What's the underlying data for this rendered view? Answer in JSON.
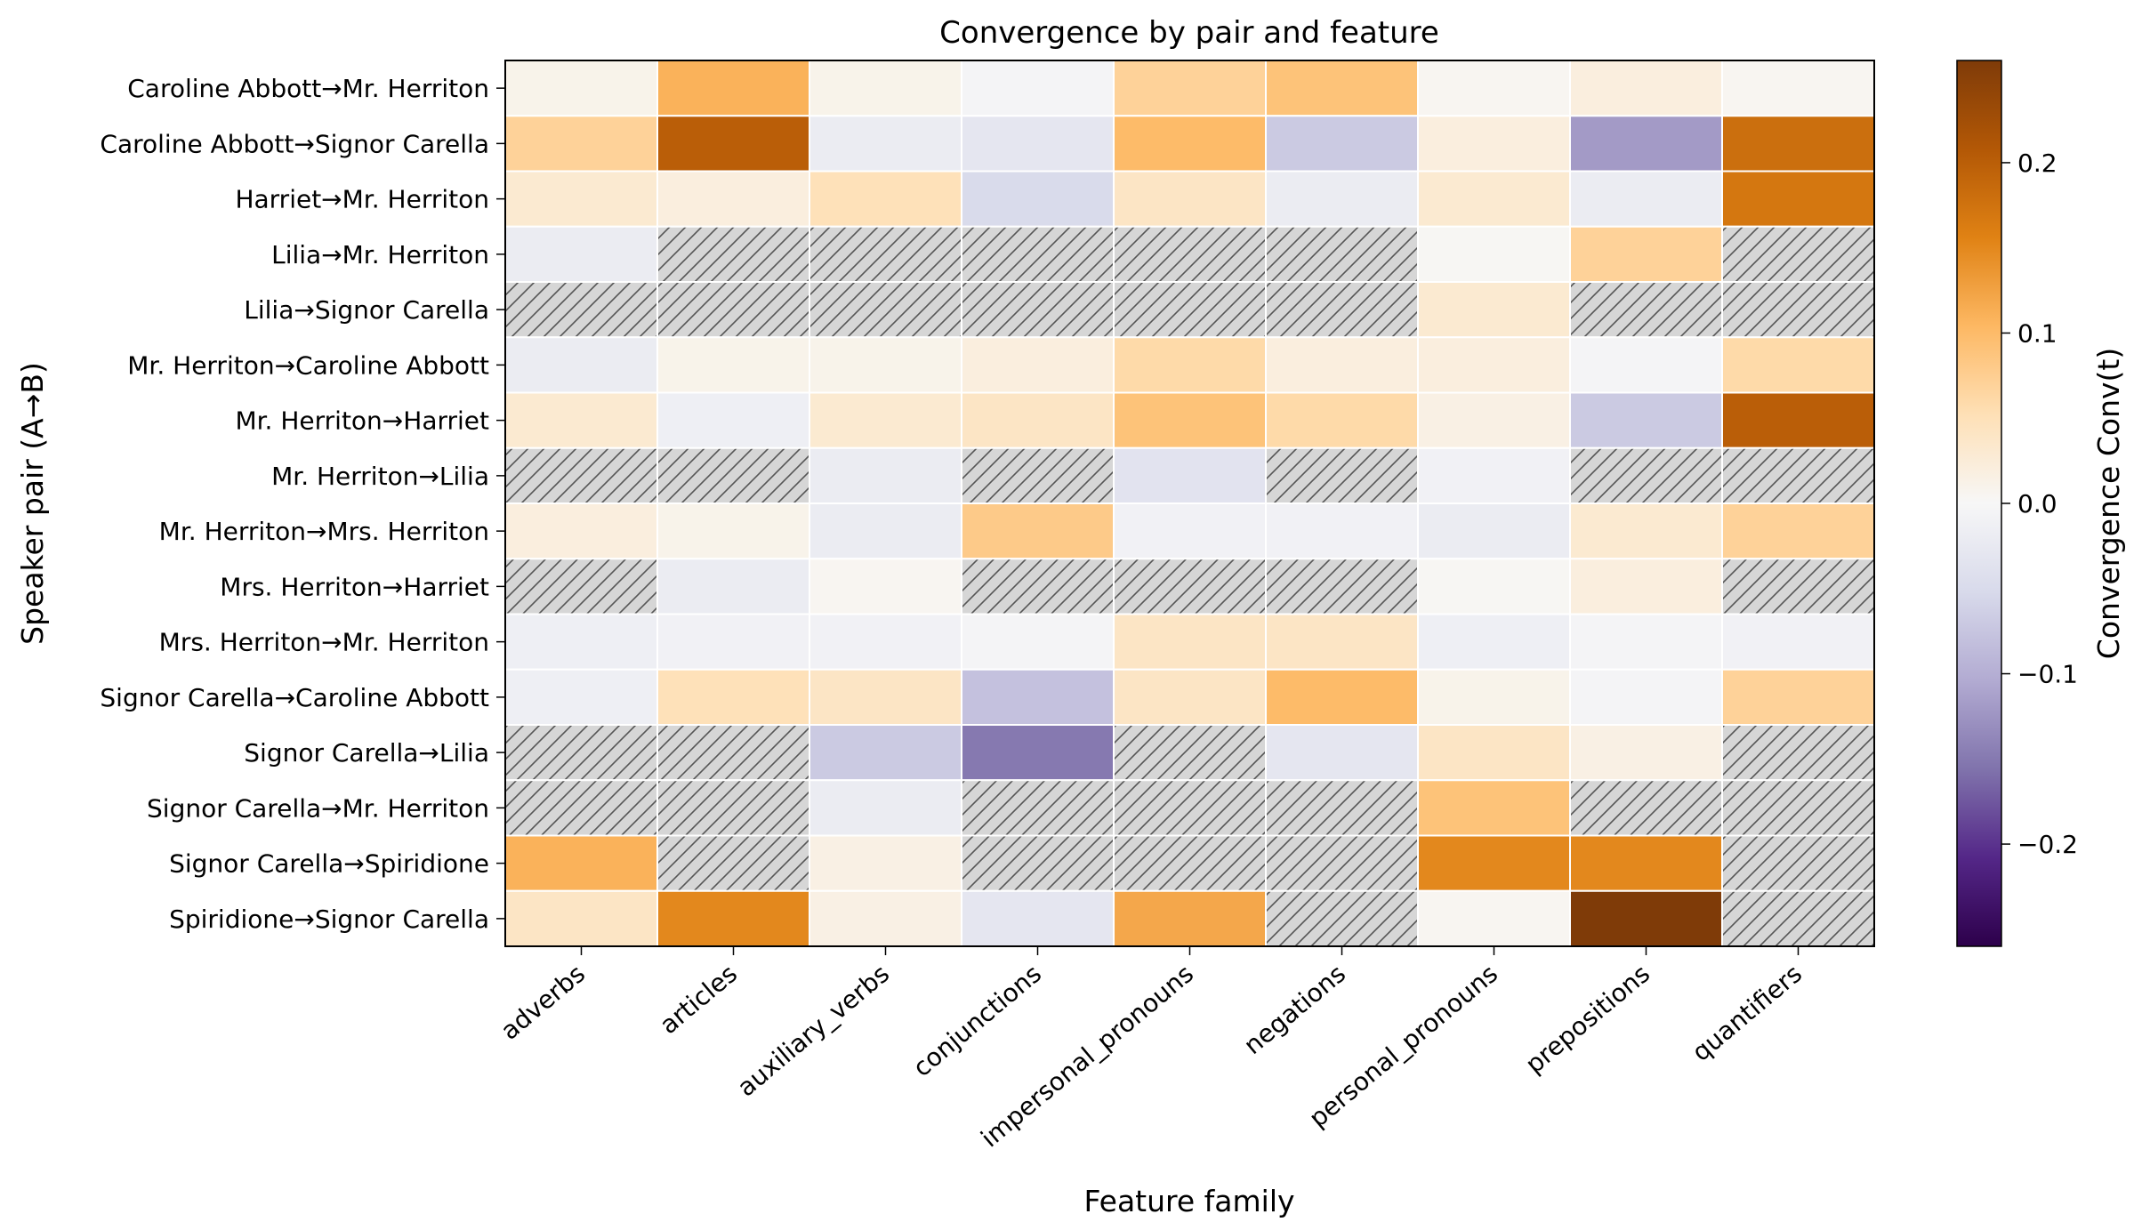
{
  "chart_data": {
    "type": "heatmap",
    "title": "Convergence by pair and feature",
    "xlabel": "Feature family",
    "ylabel": "Speaker pair (A→B)",
    "x_categories": [
      "adverbs",
      "articles",
      "auxiliary_verbs",
      "conjunctions",
      "impersonal_pronouns",
      "negations",
      "personal_pronouns",
      "prepositions",
      "quantifiers"
    ],
    "y_categories": [
      "Caroline Abbott→Mr. Herriton",
      "Caroline Abbott→Signor Carella",
      "Harriet→Mr. Herriton",
      "Lilia→Mr. Herriton",
      "Lilia→Signor Carella",
      "Mr. Herriton→Caroline Abbott",
      "Mr. Herriton→Harriet",
      "Mr. Herriton→Lilia",
      "Mr. Herriton→Mrs. Herriton",
      "Mrs. Herriton→Harriet",
      "Mrs. Herriton→Mr. Herriton",
      "Signor Carella→Caroline Abbott",
      "Signor Carella→Lilia",
      "Signor Carella→Mr. Herriton",
      "Signor Carella→Spiridione",
      "Spiridione→Signor Carella"
    ],
    "values": [
      [
        0.01,
        0.11,
        0.01,
        -0.005,
        0.07,
        0.09,
        0.005,
        0.02,
        0.005
      ],
      [
        0.07,
        0.2,
        -0.02,
        -0.03,
        0.1,
        -0.07,
        0.02,
        -0.12,
        0.18
      ],
      [
        0.03,
        0.02,
        0.05,
        -0.05,
        0.04,
        -0.02,
        0.03,
        -0.02,
        0.17
      ],
      [
        -0.02,
        null,
        null,
        null,
        null,
        null,
        0.003,
        0.07,
        null
      ],
      [
        null,
        null,
        null,
        null,
        null,
        null,
        0.03,
        null,
        null
      ],
      [
        -0.02,
        0.01,
        0.01,
        0.02,
        0.06,
        0.02,
        0.02,
        -0.005,
        0.06
      ],
      [
        0.03,
        -0.015,
        0.03,
        0.04,
        0.09,
        0.06,
        0.015,
        -0.07,
        0.2
      ],
      [
        null,
        null,
        -0.02,
        null,
        -0.035,
        null,
        -0.01,
        null,
        null
      ],
      [
        0.02,
        0.01,
        -0.02,
        0.08,
        -0.01,
        -0.01,
        -0.02,
        0.03,
        0.07
      ],
      [
        null,
        -0.02,
        0.005,
        null,
        null,
        null,
        0.003,
        0.02,
        null
      ],
      [
        -0.015,
        -0.01,
        -0.01,
        -0.005,
        0.04,
        0.04,
        -0.015,
        -0.005,
        -0.01
      ],
      [
        -0.015,
        0.05,
        0.04,
        -0.08,
        0.04,
        0.1,
        0.01,
        -0.005,
        0.07
      ],
      [
        null,
        null,
        -0.07,
        -0.15,
        null,
        -0.03,
        0.04,
        0.015,
        null
      ],
      [
        null,
        null,
        -0.02,
        null,
        null,
        null,
        0.09,
        null,
        null
      ],
      [
        0.11,
        null,
        0.015,
        null,
        null,
        null,
        0.15,
        0.15,
        null
      ],
      [
        0.04,
        0.15,
        0.015,
        -0.03,
        0.12,
        null,
        0.005,
        0.26,
        null
      ]
    ],
    "missing_pattern": "hatched gray",
    "colormap": "PuOr_r",
    "vmin": -0.26,
    "vmax": 0.26,
    "colorbar": {
      "label": "Convergence Conv(t)",
      "ticks": [
        -0.2,
        -0.1,
        0.0,
        0.1,
        0.2
      ],
      "tick_labels": [
        "−0.2",
        "−0.1",
        "0.0",
        "0.1",
        "0.2"
      ]
    },
    "colors": {
      "low": "#2d004b",
      "mid": "#f7f7f7",
      "high": "#7f3b08",
      "missing": "#d6d6d6"
    }
  }
}
